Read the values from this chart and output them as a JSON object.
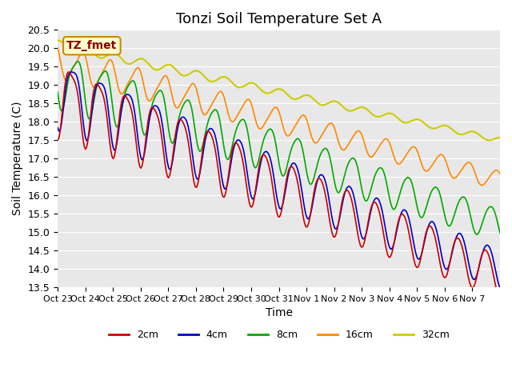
{
  "title": "Tonzi Soil Temperature Set A",
  "xlabel": "Time",
  "ylabel": "Soil Temperature (C)",
  "ylim": [
    13.5,
    20.5
  ],
  "yticks": [
    13.5,
    14.0,
    14.5,
    15.0,
    15.5,
    16.0,
    16.5,
    17.0,
    17.5,
    18.0,
    18.5,
    19.0,
    19.5,
    20.0,
    20.5
  ],
  "xtick_labels": [
    "Oct 23",
    "Oct 24",
    "Oct 25",
    "Oct 26",
    "Oct 27",
    "Oct 28",
    "Oct 29",
    "Oct 30",
    "Oct 31",
    "Nov 1",
    "Nov 2",
    "Nov 3",
    "Nov 4",
    "Nov 5",
    "Nov 6",
    "Nov 7"
  ],
  "line_colors": {
    "2cm": "#cc0000",
    "4cm": "#0000cc",
    "8cm": "#00aa00",
    "16cm": "#ff8800",
    "32cm": "#cccc00"
  },
  "annotation_text": "TZ_fmet",
  "annotation_bg": "#ffffcc",
  "annotation_border": "#cc8800",
  "annotation_text_color": "#880000",
  "plot_bg": "#e8e8e8",
  "fig_bg": "#ffffff",
  "title_fontsize": 13,
  "axis_fontsize": 10,
  "tick_fontsize": 9
}
